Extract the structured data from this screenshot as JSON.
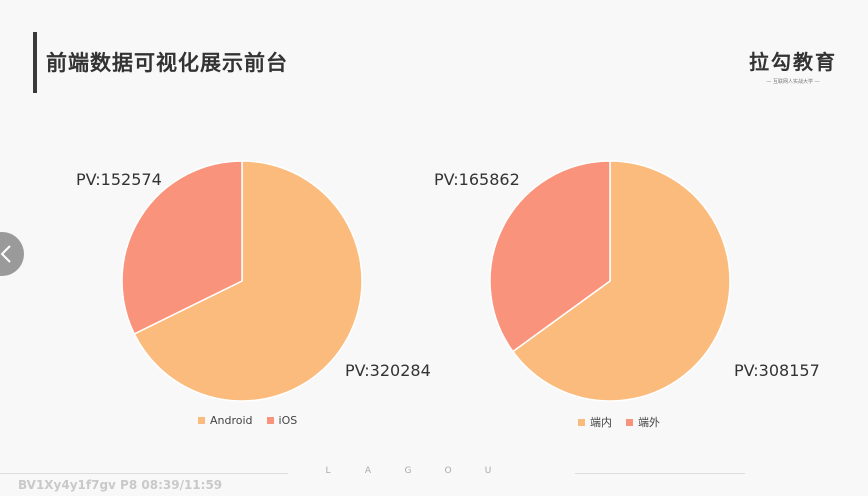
{
  "page": {
    "title": "前端数据可视化展示前台",
    "logo_main": "拉勾教育",
    "logo_sub": "— 互联网人实战大学 —",
    "footer_letters": [
      "L",
      "A",
      "G",
      "O",
      "U"
    ],
    "watermark": "BV1Xy4y1f7gv P8 08:39/11:59"
  },
  "colors": {
    "primary_slice": "#fbbb7c",
    "secondary_slice": "#f9937c",
    "slice_border": "#ffffff"
  },
  "chart_data": [
    {
      "type": "pie",
      "title": "",
      "slices": [
        {
          "label": "Android",
          "value": 320284,
          "display": "PV:320284",
          "color": "#fbbb7c"
        },
        {
          "label": "iOS",
          "value": 152574,
          "display": "PV:152574",
          "color": "#f9937c"
        }
      ],
      "legend": "bottom",
      "start_angle_deg": 0,
      "direction": "clockwise"
    },
    {
      "type": "pie",
      "title": "",
      "slices": [
        {
          "label": "端内",
          "value": 308157,
          "display": "PV:308157",
          "color": "#fbbb7c"
        },
        {
          "label": "端外",
          "value": 165862,
          "display": "PV:165862",
          "color": "#f9937c"
        }
      ],
      "legend": "bottom",
      "start_angle_deg": 0,
      "direction": "clockwise"
    }
  ]
}
